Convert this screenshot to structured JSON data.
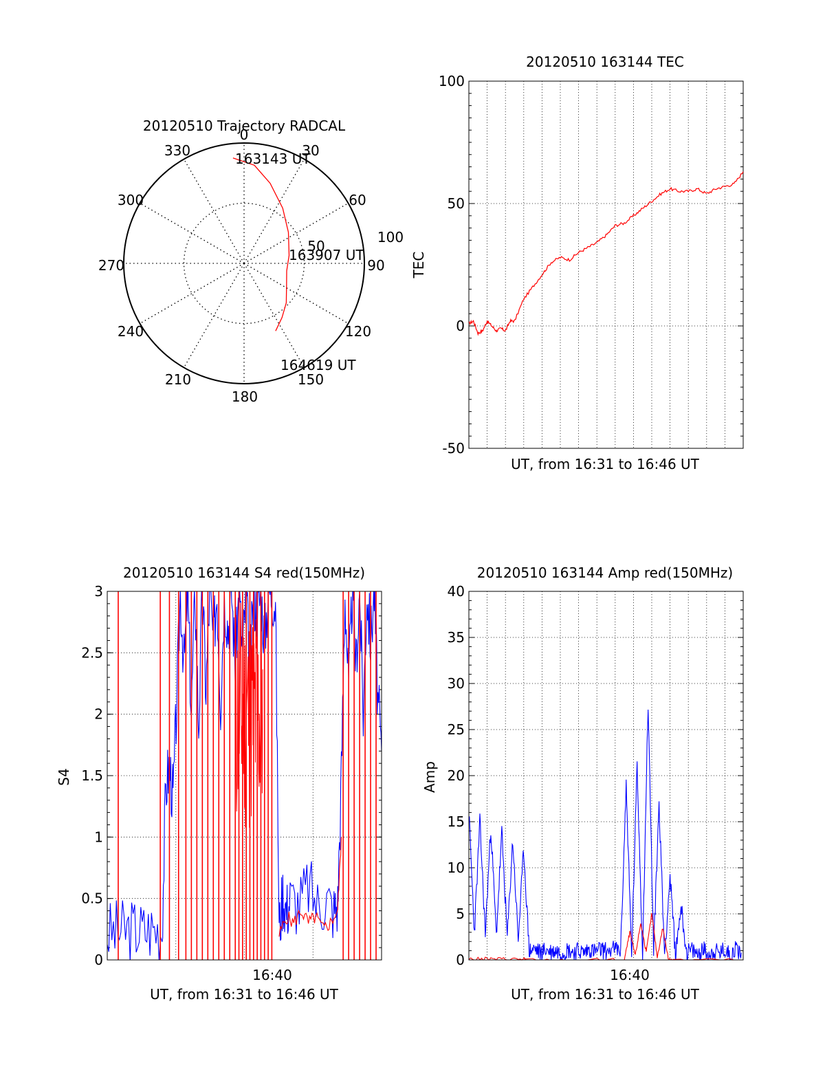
{
  "chart_data": [
    {
      "id": "polar",
      "type": "polar",
      "title": "20120510 Trajectory RADCAL",
      "angle_labels": [
        "0",
        "30",
        "60",
        "90",
        "120",
        "150",
        "180",
        "210",
        "240",
        "270",
        "300",
        "330"
      ],
      "radius_labels": [
        "50",
        "100"
      ],
      "rlim": [
        0,
        100
      ],
      "grid": true,
      "trajectory": [
        [
          -6,
          88
        ],
        [
          6,
          82
        ],
        [
          18,
          70
        ],
        [
          35,
          56
        ],
        [
          55,
          45
        ],
        [
          80,
          38
        ],
        [
          100,
          36
        ],
        [
          118,
          40
        ],
        [
          133,
          48
        ],
        [
          145,
          55
        ],
        [
          155,
          62
        ]
      ],
      "point_labels": [
        {
          "text": "163143 UT",
          "az": -6,
          "r": 88
        },
        {
          "text": "163907 UT",
          "az": 80,
          "r": 38
        },
        {
          "text": "164619 UT",
          "az": 155,
          "r": 62
        }
      ]
    },
    {
      "id": "tec",
      "type": "line",
      "title": "20120510 163144 TEC",
      "xlabel": "UT, from 16:31 to 16:46 UT",
      "ylabel": "TEC",
      "ylim": [
        -50,
        100
      ],
      "yticks": [
        "100",
        "50",
        "0",
        "-50"
      ],
      "xlim": [
        0,
        15
      ],
      "grid": true,
      "series": [
        {
          "color": "#ff0000",
          "x": [
            0.0,
            0.25,
            0.5,
            0.75,
            1.0,
            1.25,
            1.5,
            1.75,
            2.0,
            2.25,
            2.5,
            3.0,
            3.5,
            4.0,
            4.5,
            5.0,
            5.5,
            6.0,
            6.5,
            7.0,
            7.5,
            8.0,
            8.5,
            9.0,
            9.5,
            10.0,
            10.5,
            11.0,
            11.5,
            12.0,
            12.5,
            13.0,
            13.5,
            14.0,
            14.5,
            15.0
          ],
          "y": [
            1,
            2,
            -3,
            -2,
            2,
            0,
            -2,
            -1,
            -2,
            2,
            2,
            11,
            16,
            21,
            26,
            28,
            27,
            30,
            32,
            34,
            37,
            41,
            42,
            45,
            48,
            51,
            54,
            56,
            55,
            55,
            56,
            54,
            56,
            57,
            58,
            63
          ]
        }
      ]
    },
    {
      "id": "s4",
      "type": "line",
      "title": "20120510 163144 S4 red(150MHz)",
      "xlabel": "UT, from 16:31 to 16:46 UT",
      "ylabel": "S4",
      "ylim": [
        0,
        3
      ],
      "yticks": [
        "3",
        "2.5",
        "2",
        "1.5",
        "1",
        "0.5",
        "0"
      ],
      "xlim": [
        0,
        15
      ],
      "xtick_label": "16:40",
      "grid": true,
      "series": [
        {
          "color": "#0000ff",
          "x": [
            0.0,
            0.5,
            1.0,
            1.5,
            2.0,
            2.5,
            3.0,
            3.2,
            3.4,
            3.6,
            3.8,
            4.0,
            4.2,
            4.4,
            4.6,
            4.8,
            5.0,
            5.2,
            5.4,
            5.6,
            5.8,
            6.0,
            6.2,
            6.4,
            6.6,
            6.8,
            7.0,
            7.2,
            7.4,
            7.6,
            7.8,
            8.0,
            8.2,
            8.4,
            8.6,
            8.8,
            9.0,
            9.2,
            9.4,
            9.6,
            9.8,
            10.0,
            10.5,
            11.0,
            11.5,
            12.0,
            12.4,
            12.6,
            12.8,
            13.0,
            13.2,
            13.4,
            13.6,
            13.8,
            14.0,
            14.2,
            14.4,
            14.6,
            14.8,
            15.0
          ],
          "y": [
            0.22,
            0.23,
            0.24,
            0.25,
            0.24,
            0.26,
            0.25,
            1.4,
            1.6,
            1.3,
            2.1,
            3.0,
            2.4,
            3.0,
            2.0,
            3.0,
            1.9,
            3.0,
            2.2,
            3.0,
            2.6,
            3.0,
            2.1,
            3.0,
            2.7,
            3.0,
            2.4,
            3.0,
            2.5,
            3.0,
            2.3,
            3.0,
            2.8,
            3.0,
            2.6,
            3.0,
            3.0,
            2.9,
            0.25,
            0.55,
            0.4,
            0.5,
            0.45,
            0.6,
            0.45,
            0.5,
            0.4,
            0.45,
            1.5,
            3.0,
            2.2,
            3.0,
            2.4,
            3.0,
            2.0,
            3.0,
            2.6,
            3.0,
            2.1,
            1.7
          ]
        },
        {
          "color": "#ff0000",
          "x": [
            9.4,
            9.8,
            10.2,
            10.6,
            11.0,
            11.4,
            11.8,
            12.2,
            12.6,
            12.8
          ],
          "y": [
            0.2,
            0.35,
            0.3,
            0.4,
            0.3,
            0.35,
            0.25,
            0.3,
            0.4,
            1.0
          ]
        }
      ],
      "spike_series": {
        "color": "#ff0000",
        "x": [
          0.6,
          2.9,
          3.4,
          3.9,
          4.3,
          4.6,
          4.9,
          5.2,
          5.5,
          5.8,
          6.1,
          6.4,
          6.7,
          7.0,
          7.2,
          7.4,
          7.6,
          7.8,
          8.0,
          8.2,
          8.4,
          8.6,
          8.8,
          9.0,
          12.9,
          13.2,
          13.5,
          13.8,
          14.1,
          14.4,
          14.7
        ],
        "y": 3
      },
      "burst_series": {
        "color": "#ff0000",
        "x0": 7.0,
        "x1": 8.5,
        "ymin": 1.0,
        "ymax": 3.0
      }
    },
    {
      "id": "amp",
      "type": "line",
      "title": "20120510 163144 Amp red(150MHz)",
      "xlabel": "UT, from 16:31 to 16:46 UT",
      "ylabel": "Amp",
      "ylim": [
        0,
        40
      ],
      "yticks": [
        "40",
        "35",
        "30",
        "25",
        "20",
        "15",
        "10",
        "5",
        "0"
      ],
      "xlim": [
        0,
        15
      ],
      "xtick_label": "16:40",
      "grid": true,
      "series": [
        {
          "color": "#0000ff",
          "x": [
            0.0,
            0.3,
            0.6,
            0.9,
            1.2,
            1.5,
            1.8,
            2.1,
            2.4,
            2.7,
            3.0,
            3.3,
            3.6,
            3.9,
            4.2,
            4.5,
            4.8,
            5.1,
            5.4,
            5.7,
            6.0,
            6.3,
            6.6,
            6.9,
            7.2,
            7.5,
            8.0,
            8.3,
            8.6,
            8.9,
            9.2,
            9.5,
            9.8,
            10.1,
            10.4,
            10.7,
            11.0,
            11.3,
            11.6,
            11.9,
            12.2,
            12.5,
            12.8,
            13.1,
            13.4,
            13.7,
            14.0,
            14.3,
            14.6,
            14.9
          ],
          "y": [
            16.0,
            3.0,
            15.0,
            2.8,
            14.5,
            2.6,
            13.8,
            2.4,
            13.0,
            2.2,
            12.0,
            1.0,
            1.2,
            0.8,
            1.1,
            0.9,
            1.0,
            0.8,
            1.1,
            0.9,
            1.0,
            0.8,
            1.2,
            0.9,
            1.1,
            1.0,
            1.2,
            1.0,
            19.0,
            0.5,
            21.0,
            0.8,
            28.0,
            1.0,
            17.0,
            0.6,
            9.0,
            0.5,
            6.0,
            0.8,
            1.0,
            0.6,
            1.2,
            0.5,
            1.0,
            0.7,
            1.1,
            0.5,
            1.3,
            0.8
          ]
        },
        {
          "color": "#ff0000",
          "x": [
            0.0,
            1.0,
            2.0,
            3.0,
            3.1,
            7.0,
            8.5,
            8.8,
            9.1,
            9.4,
            9.7,
            10.0,
            10.3,
            10.6,
            10.9,
            11.2,
            15.0
          ],
          "y": [
            0.1,
            0.1,
            0.1,
            0.1,
            0.0,
            0.0,
            0.0,
            3.0,
            0.5,
            4.0,
            0.8,
            5.0,
            0.3,
            3.5,
            0.2,
            0.0,
            0.0
          ]
        }
      ]
    }
  ]
}
